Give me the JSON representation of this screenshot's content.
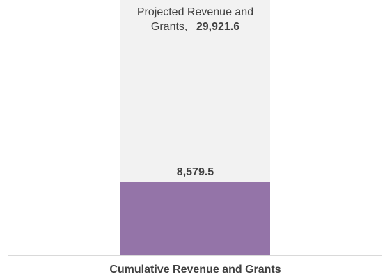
{
  "chart_data": {
    "type": "bar",
    "stacked_overlay": true,
    "categories": [
      "Cumulative Revenue and Grants"
    ],
    "series": [
      {
        "name": "Projected Revenue and Grants",
        "values": [
          29921.6
        ],
        "color": "#f2f2f2"
      },
      {
        "values": [
          8579.5
        ],
        "color": "#9474a8"
      }
    ],
    "annotations": {
      "projected_label_line1": "Projected Revenue and",
      "projected_label_line2": "Grants,",
      "projected_value_text": "29,921.6",
      "actual_value_text": "8,579.5"
    },
    "ylim": [
      0,
      29921.6
    ],
    "grid": false,
    "legend": "none",
    "axis_color": "#d9d9d9"
  }
}
